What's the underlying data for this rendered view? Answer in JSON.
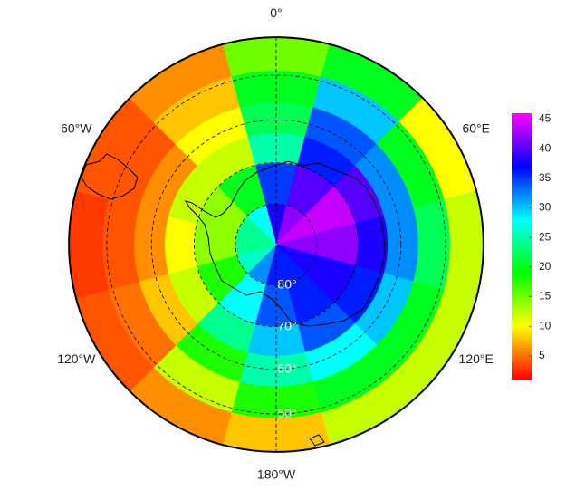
{
  "chart_data": {
    "type": "polar-heatmap",
    "projection": "south-polar-stereographic",
    "lat_edges": [
      -90,
      -80,
      -70,
      -63,
      -56,
      -49,
      -42
    ],
    "lon_edges": [
      -15,
      15,
      45,
      75,
      105,
      135,
      165,
      195,
      225,
      255,
      285,
      315,
      345
    ],
    "values": [
      [
        38,
        35,
        25,
        22,
        20,
        15
      ],
      [
        42,
        40,
        36,
        34,
        30,
        20
      ],
      [
        44,
        44,
        40,
        32,
        20,
        10
      ],
      [
        42,
        42,
        38,
        32,
        22,
        12
      ],
      [
        38,
        38,
        36,
        30,
        20,
        12
      ],
      [
        36,
        36,
        34,
        28,
        20,
        12
      ],
      [
        36,
        34,
        30,
        25,
        18,
        8
      ],
      [
        32,
        28,
        24,
        18,
        12,
        6
      ],
      [
        26,
        18,
        12,
        8,
        5,
        4
      ],
      [
        24,
        14,
        10,
        6,
        4,
        3
      ],
      [
        24,
        14,
        12,
        6,
        4,
        4
      ],
      [
        28,
        20,
        12,
        10,
        8,
        6
      ]
    ],
    "colormap": "rainbow",
    "zlim": [
      1,
      46
    ],
    "zticks": [
      5,
      10,
      15,
      20,
      25,
      30,
      35,
      40,
      45
    ],
    "lat_circles": [
      {
        "value": -80,
        "label": "80°"
      },
      {
        "value": -70,
        "label": "70°"
      },
      {
        "value": -60,
        "label": "60°"
      },
      {
        "value": -50,
        "label": "50°"
      }
    ],
    "lon_labels": [
      {
        "value": 0,
        "label": "0°"
      },
      {
        "value": 60,
        "label": "60°E"
      },
      {
        "value": 120,
        "label": "120°E"
      },
      {
        "value": 180,
        "label": "180°W"
      },
      {
        "value": -120,
        "label": "120°W"
      },
      {
        "value": -60,
        "label": "60°W"
      }
    ]
  }
}
